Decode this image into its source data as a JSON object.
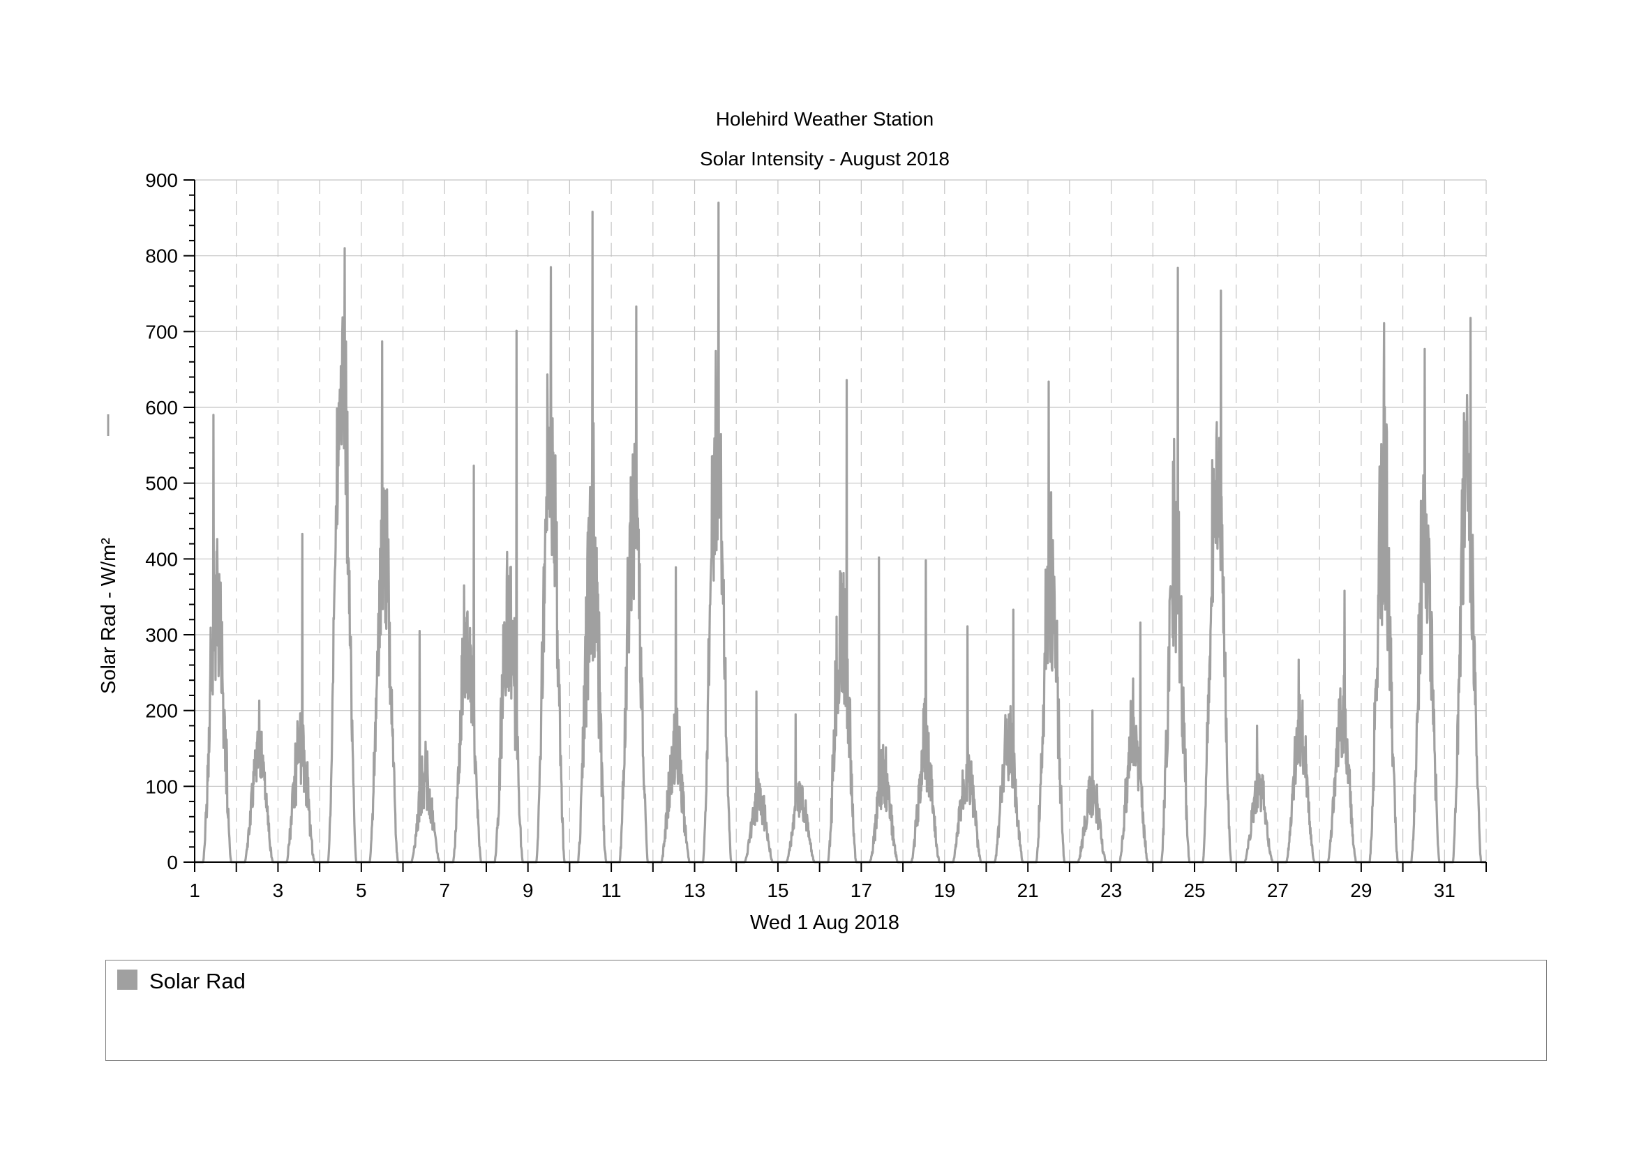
{
  "chart_data": {
    "type": "line",
    "title": "Holehird Weather Station",
    "subtitle": "Solar Intensity - August 2018",
    "xlabel": "Wed 1 Aug 2018",
    "ylabel": "Solar Rad - W/m²",
    "xlim": [
      1,
      32
    ],
    "ylim": [
      0,
      900
    ],
    "x_ticks": [
      1,
      3,
      5,
      7,
      9,
      11,
      13,
      15,
      17,
      19,
      21,
      23,
      25,
      27,
      29,
      31
    ],
    "y_ticks": [
      0,
      100,
      200,
      300,
      400,
      500,
      600,
      700,
      800,
      900
    ],
    "grid": true,
    "legend_position": "bottom",
    "series": [
      {
        "name": "Solar Rad",
        "color": "#a0a0a0",
        "daily_peaks": [
          {
            "day": 1,
            "peak": 590,
            "peak_time": 0.45,
            "level": 430,
            "noise": 0.55
          },
          {
            "day": 2,
            "peak": 213,
            "peak_time": 0.55,
            "level": 175,
            "noise": 0.45
          },
          {
            "day": 3,
            "peak": 433,
            "peak_time": 0.58,
            "level": 200,
            "noise": 0.65
          },
          {
            "day": 4,
            "peak": 810,
            "peak_time": 0.6,
            "level": 720,
            "noise": 0.35
          },
          {
            "day": 5,
            "peak": 687,
            "peak_time": 0.5,
            "level": 500,
            "noise": 0.45
          },
          {
            "day": 6,
            "peak": 305,
            "peak_time": 0.4,
            "level": 140,
            "noise": 0.6
          },
          {
            "day": 7,
            "peak": 523,
            "peak_time": 0.7,
            "level": 350,
            "noise": 0.45
          },
          {
            "day": 8,
            "peak": 701,
            "peak_time": 0.72,
            "level": 420,
            "noise": 0.55
          },
          {
            "day": 9,
            "peak": 785,
            "peak_time": 0.55,
            "level": 620,
            "noise": 0.4
          },
          {
            "day": 10,
            "peak": 858,
            "peak_time": 0.55,
            "level": 520,
            "noise": 0.6
          },
          {
            "day": 11,
            "peak": 733,
            "peak_time": 0.6,
            "level": 560,
            "noise": 0.45
          },
          {
            "day": 12,
            "peak": 389,
            "peak_time": 0.55,
            "level": 200,
            "noise": 0.6
          },
          {
            "day": 13,
            "peak": 870,
            "peak_time": 0.57,
            "level": 620,
            "noise": 0.4
          },
          {
            "day": 14,
            "peak": 225,
            "peak_time": 0.48,
            "level": 110,
            "noise": 0.6
          },
          {
            "day": 15,
            "peak": 195,
            "peak_time": 0.42,
            "level": 110,
            "noise": 0.55
          },
          {
            "day": 16,
            "peak": 636,
            "peak_time": 0.65,
            "level": 400,
            "noise": 0.55
          },
          {
            "day": 17,
            "peak": 402,
            "peak_time": 0.42,
            "level": 140,
            "noise": 0.6
          },
          {
            "day": 18,
            "peak": 398,
            "peak_time": 0.55,
            "level": 190,
            "noise": 0.6
          },
          {
            "day": 19,
            "peak": 311,
            "peak_time": 0.55,
            "level": 160,
            "noise": 0.6
          },
          {
            "day": 20,
            "peak": 333,
            "peak_time": 0.65,
            "level": 200,
            "noise": 0.55
          },
          {
            "day": 21,
            "peak": 634,
            "peak_time": 0.5,
            "level": 450,
            "noise": 0.5
          },
          {
            "day": 22,
            "peak": 200,
            "peak_time": 0.55,
            "level": 120,
            "noise": 0.6
          },
          {
            "day": 23,
            "peak": 316,
            "peak_time": 0.7,
            "level": 220,
            "noise": 0.6
          },
          {
            "day": 24,
            "peak": 784,
            "peak_time": 0.6,
            "level": 500,
            "noise": 0.55
          },
          {
            "day": 25,
            "peak": 754,
            "peak_time": 0.63,
            "level": 600,
            "noise": 0.4
          },
          {
            "day": 26,
            "peak": 180,
            "peak_time": 0.5,
            "level": 120,
            "noise": 0.5
          },
          {
            "day": 27,
            "peak": 267,
            "peak_time": 0.5,
            "level": 200,
            "noise": 0.45
          },
          {
            "day": 28,
            "peak": 358,
            "peak_time": 0.6,
            "level": 240,
            "noise": 0.5
          },
          {
            "day": 29,
            "peak": 711,
            "peak_time": 0.55,
            "level": 550,
            "noise": 0.5
          },
          {
            "day": 30,
            "peak": 677,
            "peak_time": 0.52,
            "level": 520,
            "noise": 0.5
          },
          {
            "day": 31,
            "peak": 718,
            "peak_time": 0.62,
            "level": 600,
            "noise": 0.45
          }
        ]
      }
    ]
  },
  "legend": {
    "items": [
      {
        "label": "Solar Rad",
        "color": "#a0a0a0"
      }
    ]
  }
}
